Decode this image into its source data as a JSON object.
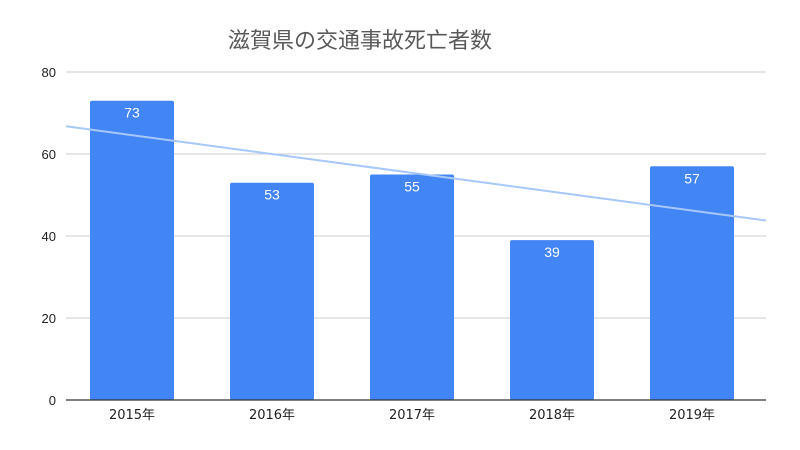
{
  "chart_data": {
    "type": "bar",
    "title": "滋賀県の交通事故死亡者数",
    "categories": [
      "2015年",
      "2016年",
      "2017年",
      "2018年",
      "2019年"
    ],
    "values": [
      73,
      53,
      55,
      39,
      57
    ],
    "data_labels": [
      "73",
      "53",
      "55",
      "39",
      "57"
    ],
    "ylim": [
      0,
      80
    ],
    "yticks": [
      0,
      20,
      40,
      60,
      80
    ],
    "ytick_labels": [
      "0",
      "20",
      "40",
      "60",
      "80"
    ],
    "xlabel": "",
    "ylabel": "",
    "grid": true,
    "legend": "none",
    "trendline": {
      "type": "linear"
    },
    "colors": {
      "bar": "#4285f4",
      "trendline": "#a8c7fa",
      "grid": "#cccccc",
      "baseline": "#333333",
      "title": "#595959"
    }
  }
}
